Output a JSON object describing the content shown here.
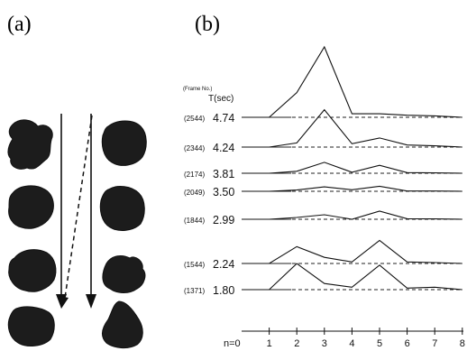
{
  "panels": {
    "a_label": "(a)",
    "b_label": "(b)"
  },
  "chart_header": {
    "frame_title": "(Frame No.)",
    "time_title": "T(sec)"
  },
  "rows": [
    {
      "frame": "(2544)",
      "time": "4.74",
      "values": [
        0,
        0,
        0.35,
        1.0,
        0.05,
        0.05,
        0.03,
        0.02,
        0
      ]
    },
    {
      "frame": "(2344)",
      "time": "4.24",
      "values": [
        0,
        0,
        0.1,
        0.9,
        0.08,
        0.22,
        0.05,
        0.03,
        0
      ]
    },
    {
      "frame": "(2174)",
      "time": "3.81",
      "values": [
        0,
        0,
        0.1,
        0.55,
        0.05,
        0.4,
        0.03,
        0.02,
        0
      ]
    },
    {
      "frame": "(2049)",
      "time": "3.50",
      "values": [
        0,
        0,
        0.1,
        0.35,
        0.12,
        0.4,
        0.02,
        0.02,
        0
      ]
    },
    {
      "frame": "(1844)",
      "time": "2.99",
      "values": [
        0,
        0,
        0.1,
        0.25,
        0.0,
        0.45,
        0.03,
        0.02,
        0
      ]
    },
    {
      "frame": "(1544)",
      "time": "2.24",
      "values": [
        0,
        0,
        0.55,
        0.2,
        0.05,
        0.75,
        0.05,
        0.03,
        0
      ]
    },
    {
      "frame": "(1371)",
      "time": "1.80",
      "values": [
        0,
        0,
        0.85,
        0.2,
        0.08,
        0.8,
        0.05,
        0.08,
        0
      ]
    }
  ],
  "x_axis": {
    "prefix": "n=0",
    "ticks": [
      "1",
      "2",
      "3",
      "4",
      "5",
      "6",
      "7",
      "8"
    ]
  },
  "colors": {
    "ink": "#111111",
    "background": "#ffffff"
  }
}
